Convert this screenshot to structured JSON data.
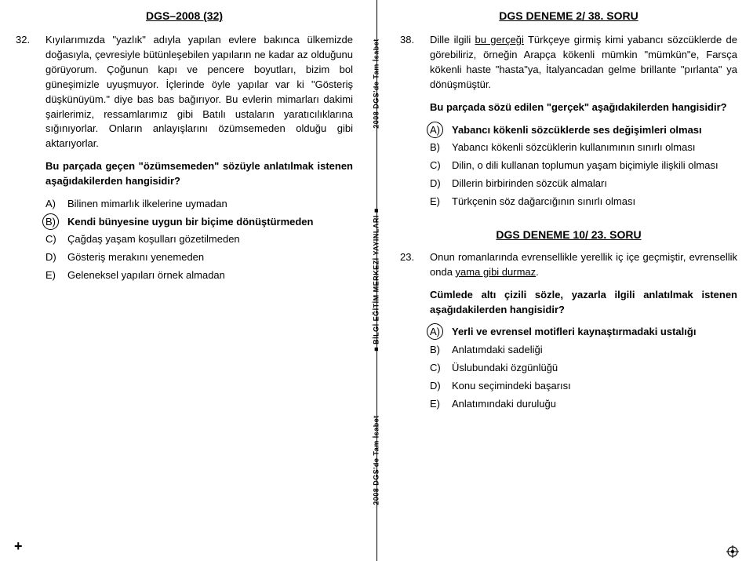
{
  "left": {
    "header": "DGS–2008 (32)",
    "qnum": "32.",
    "passage": "Kıyılarımızda \"yazlık\" adıyla yapılan evlere bakınca ülkemizde doğasıyla, çevresiyle bütünleşebilen yapıların ne kadar az olduğunu görüyorum. Çoğunun kapı ve pencere boyutları, bizim bol güneşimizle uyuşmuyor. İçlerinde öyle yapılar var ki \"Gösteriş düşkünüyüm.\" diye bas bas bağırıyor. Bu evlerin mimarları dakimi şairlerimiz, ressamlarımız gibi Batılı ustaların yaratıcılıklarına sığınıyorlar. Onların anlayışlarını özümsemeden olduğu gibi aktarıyorlar.",
    "prompt": "Bu parçada geçen \"özümsemeden\" sözüyle anlatılmak istenen aşağıdakilerden hangisidir?",
    "options": [
      {
        "l": "A)",
        "t": "Bilinen mimarlık ilkelerine uymadan"
      },
      {
        "l": "B)",
        "t": "Kendi bünyesine uygun bir biçime dönüştürmeden"
      },
      {
        "l": "C)",
        "t": "Çağdaş yaşam koşulları gözetilmeden"
      },
      {
        "l": "D)",
        "t": "Gösteriş merakını yenemeden"
      },
      {
        "l": "E)",
        "t": "Geleneksel yapıları örnek almadan"
      }
    ],
    "correct": 1
  },
  "right": {
    "header": "DGS DENEME 2/ 38. SORU",
    "q1": {
      "num": "38.",
      "passage_pre": "Dille ilgili ",
      "passage_u1": "bu gerçeği",
      "passage_post": " Türkçeye girmiş kimi yabancı sözcüklerde de görebiliriz, örneğin Arapça kökenli mümkin \"mümkün\"e, Farsça kökenli haste \"hasta\"ya, İtalyancadan gelme brillante \"pırlanta\" ya dönüşmüştür.",
      "prompt": "Bu parçada sözü edilen \"gerçek\" aşağıdakilerden hangisidir?",
      "options": [
        {
          "l": "A)",
          "t": "Yabancı kökenli sözcüklerde ses değişimleri olması"
        },
        {
          "l": "B)",
          "t": "Yabancı kökenli sözcüklerin kullanımının sınırlı olması"
        },
        {
          "l": "C)",
          "t": "Dilin, o dili kullanan toplumun yaşam biçimiyle ilişkili olması"
        },
        {
          "l": "D)",
          "t": "Dillerin birbirinden sözcük almaları"
        },
        {
          "l": "E)",
          "t": "Türkçenin söz dağarcığının sınırlı olması"
        }
      ],
      "correct": 0
    },
    "header2": "DGS DENEME 10/ 23. SORU",
    "q2": {
      "num": "23.",
      "passage_pre": "Onun romanlarında evrensellikle yerellik iç içe geçmiştir, evrensellik onda ",
      "passage_u1": "yama gibi durmaz",
      "passage_post": ".",
      "prompt": "Cümlede altı çizili sözle, yazarla ilgili anlatılmak istenen aşağıdakilerden hangisidir?",
      "options": [
        {
          "l": "A)",
          "t": "Yerli ve evrensel motifleri kaynaştırmadaki ustalığı"
        },
        {
          "l": "B)",
          "t": "Anlatımdaki sadeliği"
        },
        {
          "l": "C)",
          "t": "Üslubundaki özgünlüğü"
        },
        {
          "l": "D)",
          "t": "Konu seçimindeki başarısı"
        },
        {
          "l": "E)",
          "t": "Anlatımındaki duruluğu"
        }
      ],
      "correct": 0
    }
  },
  "divider": {
    "top": "2008 DGS'de Tam İsabet",
    "mid": "■ BİLGİ EĞİTİM MERKEZİ YAYINLARI ■",
    "bot": "2008 DGS'de Tam İsabet"
  },
  "corners": {
    "plus": "+"
  }
}
